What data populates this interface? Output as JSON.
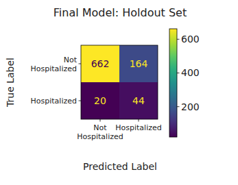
{
  "chart_data": {
    "type": "heatmap",
    "title": "Final Model: Holdout Set",
    "x_label": "Predicted Label",
    "y_label": "True Label",
    "x_categories": [
      "Not\nHospitalized",
      "Hospitalized"
    ],
    "y_categories": [
      "Not\nHospitalized",
      "Hospitalized"
    ],
    "cells": [
      [
        662,
        164
      ],
      [
        20,
        44
      ]
    ],
    "clim": [
      20,
      662
    ],
    "cticks": [
      200,
      400,
      600
    ],
    "color": "viridis",
    "data_labels": true
  }
}
